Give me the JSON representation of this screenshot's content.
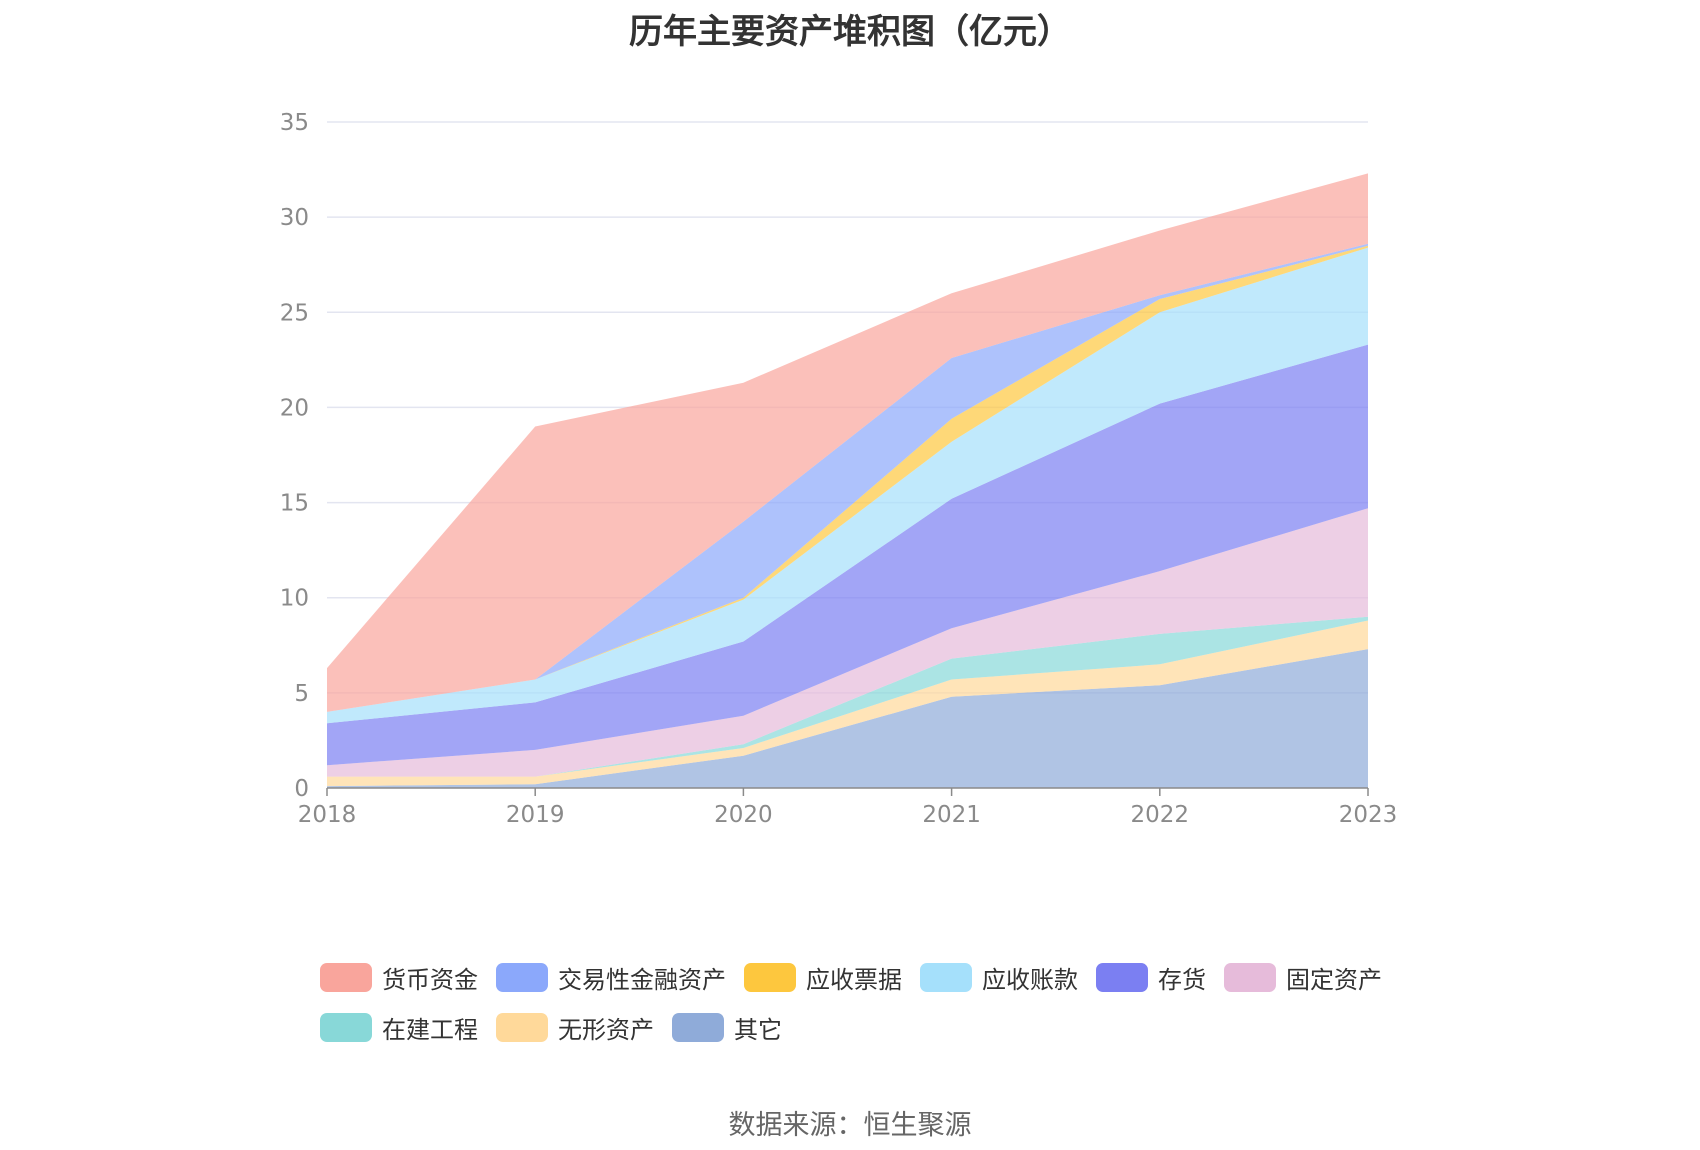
{
  "chart_data": {
    "type": "area",
    "title": "历年主要资产堆积图（亿元）",
    "stacked": true,
    "categories": [
      "2018",
      "2019",
      "2020",
      "2021",
      "2022",
      "2023"
    ],
    "ylim": [
      0,
      35
    ],
    "yticks": [
      0,
      5,
      10,
      15,
      20,
      25,
      30,
      35
    ],
    "grid": true,
    "legend_position": "bottom",
    "series": [
      {
        "name": "其它",
        "color": "#8fabd9",
        "values": [
          0.1,
          0.2,
          1.7,
          4.8,
          5.4,
          7.3
        ]
      },
      {
        "name": "无形资产",
        "color": "#ffd99a",
        "values": [
          0.5,
          0.4,
          0.4,
          0.9,
          1.1,
          1.5
        ]
      },
      {
        "name": "在建工程",
        "color": "#88d8d8",
        "values": [
          0.0,
          0.0,
          0.2,
          1.1,
          1.6,
          0.2
        ]
      },
      {
        "name": "固定资产",
        "color": "#e6bbda",
        "values": [
          0.6,
          1.4,
          1.5,
          1.6,
          3.3,
          5.7
        ]
      },
      {
        "name": "存货",
        "color": "#7b7ff2",
        "values": [
          2.2,
          2.5,
          3.9,
          6.8,
          8.8,
          8.6
        ]
      },
      {
        "name": "应收账款",
        "color": "#a5e0fb",
        "values": [
          0.6,
          1.2,
          2.2,
          3.0,
          4.8,
          5.1
        ]
      },
      {
        "name": "应收票据",
        "color": "#fdc73e",
        "values": [
          0.0,
          0.0,
          0.1,
          1.2,
          0.7,
          0.1
        ]
      },
      {
        "name": "交易性金融资产",
        "color": "#8ba8fb",
        "values": [
          0.0,
          0.0,
          4.0,
          3.2,
          0.2,
          0.1
        ]
      },
      {
        "name": "货币资金",
        "color": "#f9a59c",
        "values": [
          2.3,
          13.3,
          7.3,
          3.4,
          3.4,
          3.7
        ]
      }
    ],
    "legend_order": [
      "货币资金",
      "交易性金融资产",
      "应收票据",
      "应收账款",
      "存货",
      "固定资产",
      "在建工程",
      "无形资产",
      "其它"
    ]
  },
  "footer": {
    "source": "数据来源：恒生聚源"
  },
  "colors": {
    "grid": "#e3e5f0",
    "axis": "#8a8a8a"
  }
}
